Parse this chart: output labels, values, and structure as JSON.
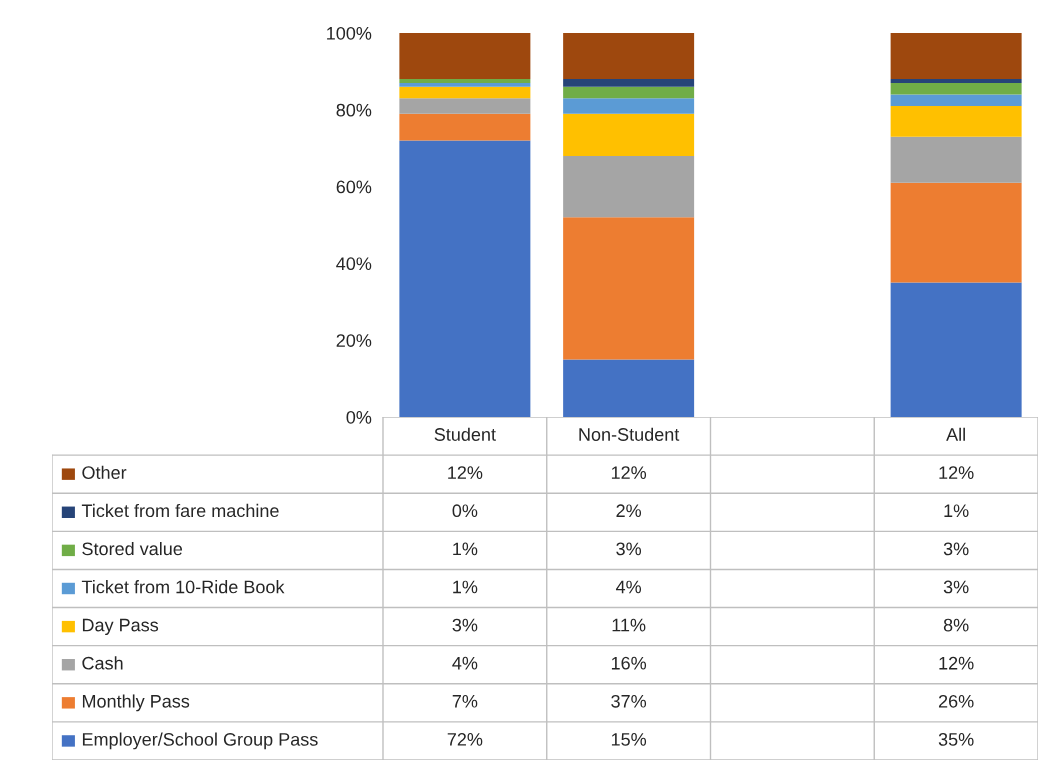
{
  "chart_data": {
    "type": "bar",
    "stacked": true,
    "categories": [
      "Student",
      "Non-Student",
      null,
      "All"
    ],
    "ylim": [
      0,
      100
    ],
    "yticks": [
      {
        "value": 0,
        "label": "0%"
      },
      {
        "value": 20,
        "label": "20%"
      },
      {
        "value": 40,
        "label": "40%"
      },
      {
        "value": 60,
        "label": "60%"
      },
      {
        "value": 80,
        "label": "80%"
      },
      {
        "value": 100,
        "label": "100%"
      }
    ],
    "grid": false,
    "legend": "bottom",
    "series": [
      {
        "name": "Employer/School Group Pass",
        "color": "#4472c4",
        "values": [
          72,
          15,
          null,
          35
        ],
        "value_labels": [
          "72%",
          "15%",
          null,
          "35%"
        ]
      },
      {
        "name": "Monthly Pass",
        "color": "#ed7d31",
        "values": [
          7,
          37,
          null,
          26
        ],
        "value_labels": [
          "7%",
          "37%",
          null,
          "26%"
        ]
      },
      {
        "name": "Cash",
        "color": "#a5a5a5",
        "values": [
          4,
          16,
          null,
          12
        ],
        "value_labels": [
          "4%",
          "16%",
          null,
          "12%"
        ]
      },
      {
        "name": "Day Pass",
        "color": "#ffc000",
        "values": [
          3,
          11,
          null,
          8
        ],
        "value_labels": [
          "3%",
          "11%",
          null,
          "8%"
        ]
      },
      {
        "name": "Ticket from 10-Ride Book",
        "color": "#5b9bd5",
        "values": [
          1,
          4,
          null,
          3
        ],
        "value_labels": [
          "1%",
          "4%",
          null,
          "3%"
        ]
      },
      {
        "name": "Stored value",
        "color": "#70ad47",
        "values": [
          1,
          3,
          null,
          3
        ],
        "value_labels": [
          "1%",
          "3%",
          null,
          "3%"
        ]
      },
      {
        "name": "Ticket from fare machine",
        "color": "#264478",
        "values": [
          0,
          2,
          null,
          1
        ],
        "value_labels": [
          "0%",
          "2%",
          null,
          "1%"
        ]
      },
      {
        "name": "Other",
        "color": "#9e480e",
        "values": [
          12,
          12,
          null,
          12
        ],
        "value_labels": [
          "12%",
          "12%",
          null,
          "12%"
        ]
      }
    ]
  }
}
